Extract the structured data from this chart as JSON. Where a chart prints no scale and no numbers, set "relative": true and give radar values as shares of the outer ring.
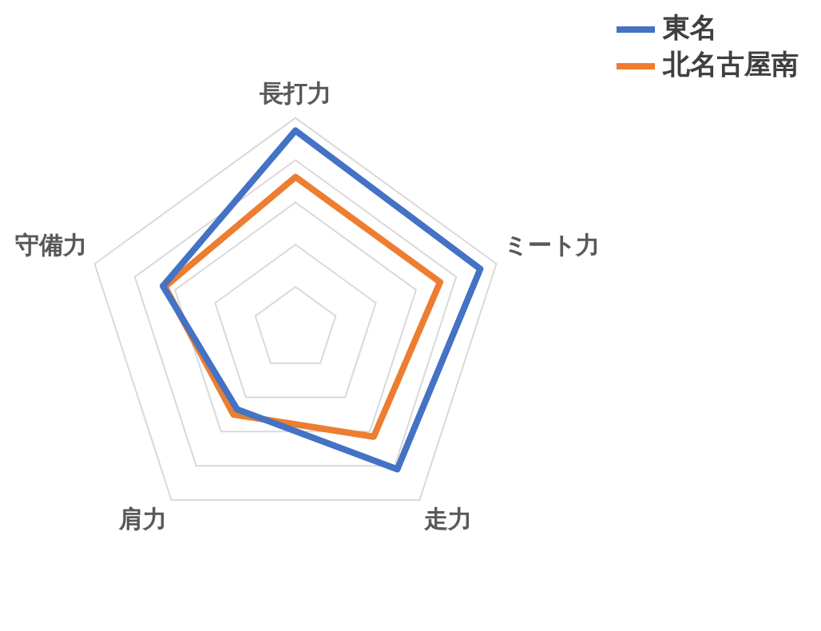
{
  "chart_data": {
    "type": "radar",
    "relative": true,
    "categories": [
      "長打力",
      "ミート力",
      "走力",
      "肩力",
      "守備力"
    ],
    "series": [
      {
        "name": "東名",
        "color": "#4472c4",
        "values": [
          0.94,
          0.92,
          0.82,
          0.47,
          0.66
        ]
      },
      {
        "name": "北名古屋南",
        "color": "#ed7d31",
        "values": [
          0.72,
          0.72,
          0.63,
          0.5,
          0.65
        ]
      }
    ],
    "grid": true,
    "legend": "top right",
    "marker": "none"
  }
}
